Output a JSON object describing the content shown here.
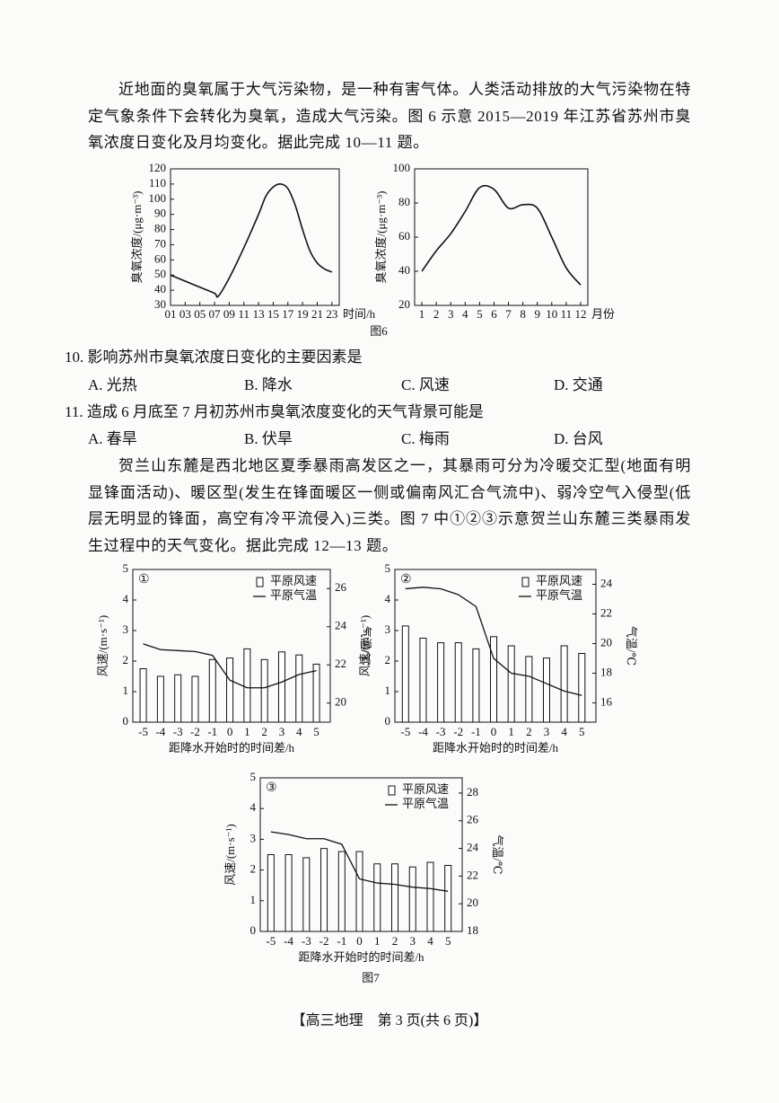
{
  "paragraphs": [
    "近地面的臭氧属于大气污染物，是一种有害气体。人类活动排放的大气污染物在特定气象条件下会转化为臭氧，造成大气污染。图 6 示意 2015—2019 年江苏省苏州市臭氧浓度日变化及月均变化。据此完成 10—11 题。",
    "贺兰山东麓是西北地区夏季暴雨高发区之一，其暴雨可分为冷暖交汇型(地面有明显锋面活动)、暖区型(发生在锋面暖区一侧或偏南风汇合气流中)、弱冷空气入侵型(低层无明显的锋面，高空有冷平流侵入)三类。图 7 中①②③示意贺兰山东麓三类暴雨发生过程中的天气变化。据此完成 12—13 题。"
  ],
  "figure_captions": [
    "图6",
    "图7"
  ],
  "questions": [
    {
      "stem": "10. 影响苏州市臭氧浓度日变化的主要因素是",
      "options": [
        "A. 光热",
        "B. 降水",
        "C. 风速",
        "D. 交通"
      ]
    },
    {
      "stem": "11. 造成 6 月底至 7 月初苏州市臭氧浓度变化的天气背景可能是",
      "options": [
        "A. 春旱",
        "B. 伏旱",
        "C. 梅雨",
        "D. 台风"
      ]
    }
  ],
  "footer": "【高三地理　第 3 页(共 6 页)】",
  "chart_data": [
    {
      "type": "line",
      "y_label": "臭氧浓度/(μg·m⁻³)",
      "x_label": "时间/h",
      "x": [
        1,
        3,
        5,
        7,
        7.5,
        9,
        11,
        13,
        14,
        15,
        16,
        17,
        18,
        19,
        20,
        21,
        22,
        23
      ],
      "values": [
        50,
        46,
        42,
        38,
        36,
        48,
        68,
        90,
        102,
        108,
        110,
        107,
        96,
        80,
        66,
        58,
        54,
        52
      ],
      "color": "#111111",
      "xlim": [
        1,
        24
      ],
      "xticks": [
        {
          "value": 1,
          "label": "01"
        },
        {
          "value": 3,
          "label": "03"
        },
        {
          "value": 5,
          "label": "05"
        },
        {
          "value": 7,
          "label": "07"
        },
        {
          "value": 9,
          "label": "09"
        },
        11,
        13,
        15,
        17,
        19,
        21,
        23
      ],
      "ylim": [
        30,
        120
      ],
      "yticks": [
        30,
        40,
        50,
        60,
        70,
        80,
        90,
        100,
        110,
        120
      ]
    },
    {
      "type": "line",
      "y_label": "臭氧浓度/(μg·m⁻³)",
      "x_label": "月份",
      "x": [
        1,
        2,
        3,
        4,
        5,
        6,
        7,
        8,
        9,
        10,
        11,
        12
      ],
      "values": [
        40,
        52,
        62,
        75,
        89,
        88,
        77,
        79,
        77,
        60,
        42,
        32
      ],
      "color": "#111111",
      "xlim": [
        0.5,
        12.5
      ],
      "xticks": [
        1,
        2,
        3,
        4,
        5,
        6,
        7,
        8,
        9,
        10,
        11,
        12
      ],
      "ylim": [
        20,
        100
      ],
      "yticks": [
        20,
        40,
        60,
        80,
        100
      ]
    },
    {
      "type": "combo",
      "panel_label": "①",
      "categories": [
        -5,
        -4,
        -3,
        -2,
        -1,
        0,
        1,
        2,
        3,
        4,
        5
      ],
      "x_label": "距降水开始时的时间差/h",
      "y_label": "风速/(m·s⁻¹)",
      "y2_label": "气温/℃",
      "ylim": [
        0,
        5
      ],
      "yticks": [
        0,
        1,
        2,
        3,
        4,
        5
      ],
      "y2lim": [
        19,
        27
      ],
      "y2ticks": [
        20,
        22,
        24,
        26
      ],
      "legend": "top right",
      "series": [
        {
          "name": "平原风速",
          "type": "bar",
          "color": "#111111",
          "values": [
            1.75,
            1.5,
            1.55,
            1.5,
            2.05,
            2.1,
            2.4,
            2.05,
            2.3,
            2.2,
            1.9
          ]
        },
        {
          "name": "平原气温",
          "type": "line",
          "axis": "y2",
          "color": "#111111",
          "values": [
            23.1,
            22.8,
            22.75,
            22.7,
            22.5,
            21.2,
            20.8,
            20.8,
            21.1,
            21.5,
            21.7
          ]
        }
      ]
    },
    {
      "type": "combo",
      "panel_label": "②",
      "categories": [
        -5,
        -4,
        -3,
        -2,
        -1,
        0,
        1,
        2,
        3,
        4,
        5
      ],
      "x_label": "距降水开始时的时间差/h",
      "y_label": "风速/(m·s⁻¹)",
      "y2_label": "气温/℃",
      "ylim": [
        0,
        5
      ],
      "yticks": [
        0,
        1,
        2,
        3,
        4,
        5
      ],
      "y2lim": [
        14.7,
        25
      ],
      "y2ticks": [
        16,
        18,
        20,
        22,
        24
      ],
      "legend": "top right",
      "series": [
        {
          "name": "平原风速",
          "type": "bar",
          "color": "#111111",
          "values": [
            3.15,
            2.75,
            2.6,
            2.6,
            2.4,
            2.8,
            2.5,
            2.15,
            2.1,
            2.5,
            2.25
          ]
        },
        {
          "name": "平原气温",
          "type": "line",
          "axis": "y2",
          "color": "#111111",
          "values": [
            23.7,
            23.8,
            23.7,
            23.3,
            22.5,
            19.0,
            18.0,
            17.8,
            17.3,
            16.8,
            16.5
          ]
        }
      ]
    },
    {
      "type": "combo",
      "panel_label": "③",
      "categories": [
        -5,
        -4,
        -3,
        -2,
        -1,
        0,
        1,
        2,
        3,
        4,
        5
      ],
      "x_label": "距降水开始时的时间差/h",
      "y_label": "风速/(m·s⁻¹)",
      "y2_label": "气温/℃",
      "ylim": [
        0,
        5
      ],
      "yticks": [
        0,
        1,
        2,
        3,
        4,
        5
      ],
      "y2lim": [
        18,
        29.1
      ],
      "y2ticks": [
        18,
        20,
        22,
        24,
        26,
        28
      ],
      "legend": "top right",
      "series": [
        {
          "name": "平原风速",
          "type": "bar",
          "color": "#111111",
          "values": [
            2.5,
            2.5,
            2.4,
            2.7,
            2.6,
            2.6,
            2.2,
            2.2,
            2.1,
            2.25,
            2.15
          ]
        },
        {
          "name": "平原气温",
          "type": "line",
          "axis": "y2",
          "color": "#111111",
          "values": [
            25.2,
            25.0,
            24.7,
            24.7,
            24.3,
            21.8,
            21.5,
            21.4,
            21.2,
            21.1,
            20.9
          ]
        }
      ]
    }
  ]
}
